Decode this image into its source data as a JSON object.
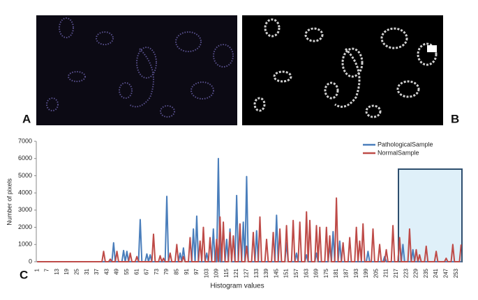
{
  "panel_labels": {
    "a": "A",
    "b": "B",
    "c": "C"
  },
  "chart_data": {
    "type": "line",
    "x_label": "Histogram values",
    "y_label": "Number of pixels",
    "ylim": [
      0,
      7000
    ],
    "yticks": [
      0,
      1000,
      2000,
      3000,
      4000,
      5000,
      6000,
      7000
    ],
    "grid": false,
    "legend": "upper right",
    "categories": [
      1,
      null,
      null,
      null,
      null,
      null,
      7,
      null,
      null,
      null,
      null,
      null,
      13,
      null,
      null,
      null,
      null,
      null,
      19,
      null,
      null,
      null,
      null,
      null,
      25,
      null,
      null,
      null,
      null,
      null,
      31,
      null,
      null,
      null,
      null,
      null,
      37,
      null,
      null,
      null,
      null,
      null,
      43,
      null,
      null,
      null,
      null,
      null,
      49,
      null,
      null,
      null,
      null,
      null,
      55,
      null,
      null,
      null,
      null,
      null,
      61,
      null,
      null,
      null,
      null,
      null,
      67,
      null,
      null,
      null,
      null,
      null,
      73,
      null,
      null,
      null,
      null,
      null,
      79,
      null,
      null,
      null,
      null,
      null,
      85,
      null,
      null,
      null,
      null,
      null,
      91,
      null,
      null,
      null,
      null,
      null,
      97,
      null,
      null,
      null,
      null,
      null,
      103,
      null,
      null,
      null,
      null,
      null,
      109,
      null,
      null,
      null,
      null,
      null,
      115,
      null,
      null,
      null,
      null,
      null,
      121,
      null,
      null,
      null,
      null,
      null,
      127,
      null,
      null,
      null,
      null,
      null,
      133,
      null,
      null,
      null,
      null,
      null,
      139,
      null,
      null,
      null,
      null,
      null,
      145,
      null,
      null,
      null,
      null,
      null,
      151,
      null,
      null,
      null,
      null,
      null,
      157,
      null,
      null,
      null,
      null,
      null,
      163,
      null,
      null,
      null,
      null,
      null,
      169,
      null,
      null,
      null,
      null,
      null,
      175,
      null,
      null,
      null,
      null,
      null,
      181,
      null,
      null,
      null,
      null,
      null,
      187,
      null,
      null,
      null,
      null,
      null,
      193,
      null,
      null,
      null,
      null,
      null,
      199,
      null,
      null,
      null,
      null,
      null,
      205,
      null,
      null,
      null,
      null,
      null,
      211,
      null,
      null,
      null,
      null,
      null,
      217,
      null,
      null,
      null,
      null,
      null,
      223,
      null,
      null,
      null,
      null,
      null,
      229,
      null,
      null,
      null,
      null,
      null,
      235,
      null,
      null,
      null,
      null,
      null,
      241,
      null,
      null,
      null,
      null,
      null,
      247,
      null,
      null,
      null,
      null,
      null,
      253,
      null,
      null,
      null
    ],
    "series": [
      {
        "name": "PathologicalSample",
        "color": "#4a7ebb",
        "values": [
          0,
          0,
          0,
          0,
          0,
          0,
          0,
          0,
          0,
          0,
          0,
          0,
          0,
          0,
          0,
          0,
          0,
          0,
          0,
          0,
          0,
          0,
          0,
          0,
          0,
          0,
          0,
          0,
          0,
          0,
          0,
          0,
          0,
          0,
          0,
          0,
          0,
          0,
          0,
          0,
          0,
          0,
          0,
          0,
          0,
          0,
          1100,
          0,
          0,
          0,
          0,
          0,
          650,
          0,
          600,
          0,
          0,
          0,
          0,
          0,
          0,
          0,
          2450,
          0,
          0,
          0,
          450,
          0,
          400,
          0,
          0,
          0,
          0,
          0,
          0,
          0,
          0,
          0,
          3800,
          0,
          0,
          0,
          0,
          0,
          0,
          0,
          500,
          0,
          800,
          0,
          0,
          0,
          0,
          0,
          1900,
          0,
          2650,
          0,
          0,
          0,
          0,
          0,
          500,
          0,
          0,
          0,
          1900,
          0,
          0,
          6000,
          0,
          0,
          0,
          0,
          1300,
          0,
          1900,
          0,
          0,
          0,
          3850,
          0,
          0,
          0,
          2300,
          0,
          4950,
          0,
          0,
          0,
          0,
          0,
          1800,
          0,
          0,
          0,
          0,
          0,
          0,
          0,
          0,
          0,
          0,
          0,
          2700,
          0,
          0,
          0,
          0,
          0,
          1100,
          0,
          0,
          0,
          0,
          0,
          500,
          0,
          0,
          0,
          0,
          0,
          400,
          0,
          0,
          0,
          0,
          0,
          500,
          0,
          0,
          0,
          0,
          0,
          0,
          0,
          1000,
          0,
          1750,
          0,
          0,
          0,
          1200,
          0,
          0,
          0,
          0,
          0,
          0,
          0,
          0,
          0,
          0,
          0,
          0,
          0,
          0,
          0,
          0,
          600,
          0,
          0,
          0,
          0,
          0,
          0,
          0,
          0,
          0,
          300,
          0,
          0,
          0,
          0,
          0,
          0,
          0,
          0,
          1300,
          0,
          1000,
          0,
          0,
          0,
          0,
          0,
          700,
          0,
          0,
          0,
          0,
          0,
          0,
          0,
          0,
          0,
          0,
          0,
          0,
          0,
          0,
          0,
          0,
          0,
          0,
          0,
          0,
          0,
          0,
          0,
          0,
          0,
          0,
          0,
          0,
          0
        ]
      },
      {
        "name": "NormalSample",
        "color": "#be4b48",
        "values": [
          0,
          0,
          0,
          0,
          0,
          0,
          0,
          0,
          0,
          0,
          0,
          0,
          0,
          0,
          0,
          0,
          0,
          0,
          0,
          0,
          0,
          0,
          0,
          0,
          0,
          0,
          0,
          0,
          0,
          0,
          0,
          0,
          0,
          0,
          0,
          0,
          0,
          0,
          0,
          0,
          600,
          0,
          0,
          0,
          150,
          0,
          0,
          0,
          600,
          0,
          0,
          0,
          0,
          0,
          0,
          0,
          500,
          0,
          0,
          0,
          300,
          0,
          0,
          0,
          0,
          0,
          0,
          0,
          0,
          0,
          1600,
          0,
          0,
          0,
          350,
          0,
          200,
          0,
          0,
          0,
          500,
          0,
          0,
          0,
          1000,
          0,
          0,
          0,
          300,
          0,
          0,
          0,
          1400,
          0,
          0,
          0,
          0,
          0,
          1200,
          0,
          2000,
          0,
          0,
          0,
          1400,
          0,
          0,
          0,
          1300,
          0,
          2600,
          0,
          2300,
          0,
          0,
          0,
          1700,
          0,
          1500,
          0,
          0,
          0,
          2200,
          0,
          0,
          0,
          900,
          0,
          0,
          0,
          1700,
          0,
          0,
          0,
          2600,
          0,
          0,
          0,
          1300,
          0,
          0,
          0,
          1700,
          0,
          0,
          0,
          1900,
          0,
          0,
          0,
          2100,
          0,
          0,
          0,
          2400,
          0,
          0,
          0,
          2300,
          0,
          0,
          0,
          2900,
          0,
          2400,
          0,
          0,
          0,
          2100,
          0,
          2000,
          0,
          0,
          0,
          2000,
          0,
          1500,
          0,
          0,
          0,
          3700,
          0,
          0,
          0,
          1100,
          0,
          0,
          0,
          1400,
          0,
          0,
          0,
          2000,
          0,
          1200,
          0,
          2200,
          0,
          0,
          0,
          0,
          0,
          1900,
          0,
          0,
          0,
          1000,
          0,
          0,
          0,
          700,
          0,
          0,
          0,
          2100,
          0,
          0,
          0,
          1400,
          0,
          0,
          0,
          0,
          0,
          1900,
          0,
          0,
          0,
          700,
          0,
          400,
          0,
          0,
          0,
          900,
          0,
          0,
          0,
          0,
          0,
          600,
          0,
          0,
          0,
          0,
          0,
          200,
          0,
          0,
          0,
          1000,
          0,
          0,
          0,
          0,
          1000
        ]
      }
    ]
  }
}
